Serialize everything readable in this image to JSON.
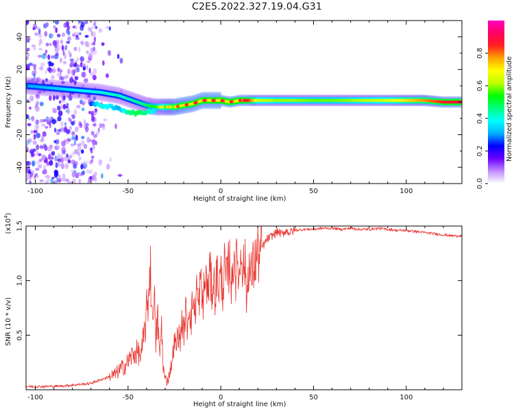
{
  "title": "C2E5.2022.327.19.04.G31",
  "chart_data": [
    {
      "type": "heatmap",
      "title": "C2E5.2022.327.19.04.G31",
      "xlabel": "Height of straight line (km)",
      "ylabel": "Frequency (Hz)",
      "xlim": [
        -105,
        130
      ],
      "ylim": [
        -50,
        50
      ],
      "x_ticks": [
        -100,
        -50,
        0,
        50,
        100
      ],
      "y_ticks": [
        40,
        20,
        0,
        -20,
        -40
      ],
      "x_tick_labels": [
        "-100",
        "-50",
        "0",
        "50",
        "100"
      ],
      "y_tick_labels": [
        "40",
        "20",
        "0",
        "-20",
        "-40"
      ],
      "colorbar": {
        "label": "Normalized spectral amplitude",
        "range": [
          0,
          1
        ],
        "ticks": [
          0.0,
          0.2,
          0.4,
          0.6,
          0.8
        ],
        "tick_labels": [
          "0.0",
          "0.2",
          "0.4",
          "0.6",
          "0.8"
        ],
        "colors": [
          "#ffffff",
          "#c08cff",
          "#6a00ff",
          "#0000ff",
          "#00b0ff",
          "#00ffff",
          "#00ff80",
          "#00ff00",
          "#c0ff00",
          "#ffff00",
          "#ffa500",
          "#ff2020",
          "#ff0060",
          "#ff00c0"
        ]
      },
      "ridge": {
        "x": [
          -105,
          -95,
          -85,
          -75,
          -65,
          -55,
          -50,
          -45,
          -40,
          -35,
          -30,
          -25,
          -20,
          -15,
          -10,
          -5,
          0,
          5,
          10,
          15,
          20,
          30,
          40,
          50,
          60,
          70,
          80,
          90,
          100,
          110,
          120,
          130
        ],
        "f": [
          10,
          9,
          8,
          7,
          6,
          4,
          2,
          0,
          -2,
          -3,
          -3,
          -3,
          -2,
          -1,
          1,
          1,
          1,
          0,
          1,
          1,
          1,
          1,
          1,
          1,
          1,
          1,
          1,
          1,
          1,
          1,
          0,
          0
        ],
        "amp": [
          0.3,
          0.32,
          0.35,
          0.38,
          0.4,
          0.42,
          0.42,
          0.44,
          0.48,
          0.55,
          0.7,
          0.82,
          0.86,
          0.88,
          0.9,
          0.9,
          0.9,
          0.88,
          0.88,
          0.85,
          0.65,
          0.6,
          0.6,
          0.58,
          0.58,
          0.6,
          0.62,
          0.66,
          0.72,
          0.78,
          0.85,
          0.88
        ]
      },
      "lower_branch": {
        "x": [
          -70,
          -65,
          -60,
          -55,
          -50,
          -45,
          -40,
          -35
        ],
        "f": [
          -1,
          -2,
          -3,
          -4,
          -6,
          -7,
          -6,
          -5
        ],
        "amp": [
          0.25,
          0.4,
          0.38,
          0.3,
          0.45,
          0.5,
          0.45,
          0.35
        ]
      }
    },
    {
      "type": "line",
      "xlabel": "Height of straight line (km)",
      "ylabel": "SNR (10 * v/v)",
      "y_multiplier_label": "(x10",
      "y_multiplier_exponent": "4",
      "y_multiplier_close": ")",
      "xlim": [
        -105,
        130
      ],
      "ylim": [
        0,
        1.5
      ],
      "x_ticks": [
        -100,
        -50,
        0,
        50,
        100
      ],
      "y_ticks": [
        0.5,
        1.0,
        1.5
      ],
      "x_tick_labels": [
        "-100",
        "-50",
        "0",
        "50",
        "100"
      ],
      "y_tick_labels": [
        "0.5",
        "1.0",
        "1.5"
      ],
      "line_color": "#e8302a",
      "series": [
        {
          "x": [
            -105,
            -95,
            -85,
            -75,
            -70,
            -65,
            -60,
            -57,
            -54,
            -51,
            -48,
            -45,
            -43,
            -41,
            -39,
            -38,
            -37,
            -36,
            -35,
            -34,
            -33,
            -32,
            -31,
            -30,
            -29,
            -28,
            -27,
            -26,
            -25,
            -24,
            -23,
            -22,
            -21,
            -20,
            -19,
            -18,
            -17,
            -16,
            -15,
            -14,
            -13,
            -12,
            -11,
            -10,
            -9,
            -8,
            -7,
            -6,
            -5,
            -4,
            -3,
            -2,
            -1,
            0,
            1,
            2,
            3,
            4,
            5,
            6,
            7,
            8,
            9,
            10,
            11,
            12,
            13,
            14,
            15,
            16,
            17,
            18,
            19,
            20,
            21,
            22,
            23,
            24,
            25,
            27,
            29,
            31,
            33,
            35,
            37,
            40,
            45,
            50,
            55,
            60,
            65,
            70,
            75,
            80,
            85,
            90,
            95,
            100,
            105,
            110,
            115,
            120,
            125,
            130
          ],
          "values": [
            0.03,
            0.03,
            0.035,
            0.05,
            0.06,
            0.09,
            0.12,
            0.14,
            0.19,
            0.23,
            0.31,
            0.35,
            0.3,
            0.55,
            0.85,
            1.2,
            0.6,
            0.95,
            0.4,
            0.7,
            0.28,
            0.6,
            0.2,
            0.1,
            0.08,
            0.12,
            0.2,
            0.3,
            0.45,
            0.38,
            0.55,
            0.42,
            0.65,
            0.5,
            0.72,
            0.58,
            0.8,
            0.62,
            0.85,
            0.68,
            0.96,
            0.72,
            1.02,
            0.78,
            0.9,
            1.05,
            0.85,
            1.1,
            0.92,
            1.0,
            0.88,
            1.08,
            0.95,
            1.05,
            0.93,
            1.12,
            0.98,
            1.1,
            1.2,
            0.88,
            1.32,
            1.05,
            1.22,
            0.98,
            1.36,
            1.1,
            1.18,
            0.8,
            1.2,
            1.0,
            1.1,
            1.15,
            1.2,
            1.25,
            1.22,
            1.3,
            1.32,
            1.35,
            1.38,
            1.4,
            1.43,
            1.45,
            1.42,
            1.46,
            1.44,
            1.46,
            1.47,
            1.47,
            1.48,
            1.48,
            1.47,
            1.48,
            1.47,
            1.47,
            1.48,
            1.47,
            1.46,
            1.46,
            1.45,
            1.44,
            1.43,
            1.42,
            1.41,
            1.41
          ]
        }
      ]
    }
  ]
}
